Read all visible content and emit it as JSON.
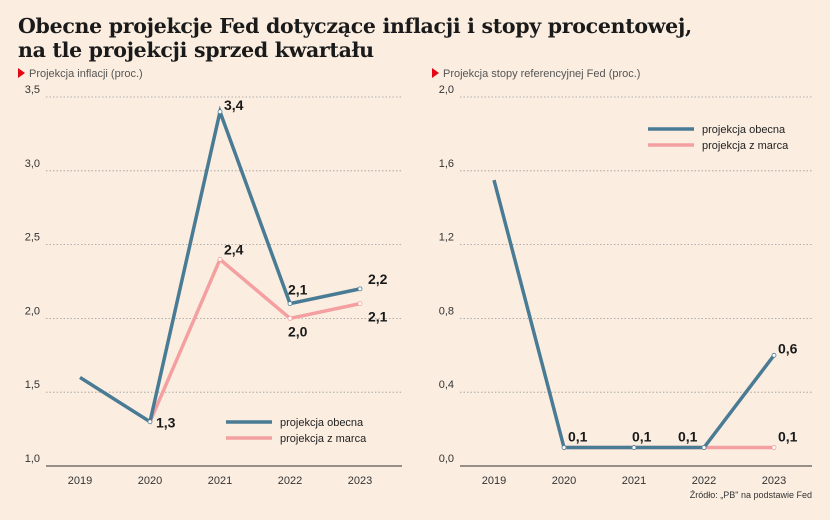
{
  "title": {
    "line1": "Obecne projekcje Fed dotyczące inflacji i stopy procentowej,",
    "line2": "na tle projekcji sprzed kwartału"
  },
  "source": "Źródło: „PB\" na podstawie Fed",
  "colors": {
    "current": "#4a7b95",
    "march": "#f4a0a0",
    "accent": "#e30613"
  },
  "chart_data": [
    {
      "type": "line",
      "title": "Projekcja inflacji (proc.)",
      "categories": [
        "2019",
        "2020",
        "2021",
        "2022",
        "2023"
      ],
      "ylim": [
        1.0,
        3.5
      ],
      "yticks": [
        "1,0",
        "1,5",
        "2,0",
        "2,5",
        "3,0",
        "3,5"
      ],
      "series": [
        {
          "name": "projekcja obecna",
          "values": [
            1.6,
            1.3,
            3.4,
            2.1,
            2.2
          ],
          "labels": [
            "",
            "",
            "3,4",
            "2,1",
            "2,2"
          ]
        },
        {
          "name": "projekcja z marca",
          "values": [
            null,
            1.3,
            2.4,
            2.0,
            2.1
          ],
          "labels": [
            "",
            "1,3",
            "2,4",
            "2,0",
            "2,1"
          ]
        }
      ],
      "legend": "bottom-right",
      "grid": true
    },
    {
      "type": "line",
      "title": "Projekcja stopy referencyjnej Fed (proc.)",
      "categories": [
        "2019",
        "2020",
        "2021",
        "2022",
        "2023"
      ],
      "ylim": [
        0.0,
        2.0
      ],
      "yticks": [
        "0,0",
        "0,4",
        "0,8",
        "1,2",
        "1,6",
        "2,0"
      ],
      "series": [
        {
          "name": "projekcja obecna",
          "values": [
            1.55,
            0.1,
            0.1,
            0.1,
            0.6
          ],
          "labels": [
            "",
            "0,1",
            "0,1",
            "0,1",
            "0,6"
          ]
        },
        {
          "name": "projekcja z marca",
          "values": [
            null,
            0.1,
            0.1,
            0.1,
            0.1
          ],
          "labels": [
            "",
            "",
            "",
            "",
            "0,1"
          ]
        }
      ],
      "legend": "top-right",
      "grid": true
    }
  ]
}
